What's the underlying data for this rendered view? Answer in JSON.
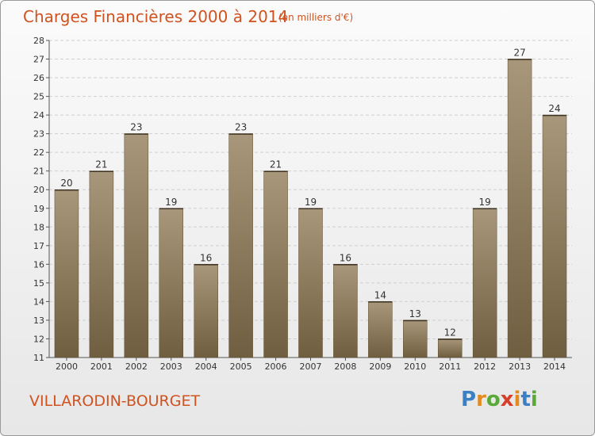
{
  "header": {
    "title": "Charges Financières 2000 à 2014",
    "subtitle": "(en milliers d'€)"
  },
  "footer": {
    "commune": "VILLARODIN-BOURGET",
    "brand": "Proxiti"
  },
  "colors": {
    "title": "#d0521f",
    "bar_top": "#a8977a",
    "bar_bottom": "#6f5e3f",
    "grid": "#cfcfcf"
  },
  "chart_data": {
    "type": "bar",
    "title": "Charges Financières 2000 à 2014",
    "subtitle": "(en milliers d'€)",
    "xlabel": "",
    "ylabel": "",
    "categories": [
      "2000",
      "2001",
      "2002",
      "2003",
      "2004",
      "2005",
      "2006",
      "2007",
      "2008",
      "2009",
      "2010",
      "2011",
      "2012",
      "2013",
      "2014"
    ],
    "values": [
      20,
      21,
      23,
      19,
      16,
      23,
      21,
      19,
      16,
      14,
      13,
      12,
      19,
      27,
      24
    ],
    "ylim": [
      11,
      28
    ],
    "yticks": [
      11,
      12,
      13,
      14,
      15,
      16,
      17,
      18,
      19,
      20,
      21,
      22,
      23,
      24,
      25,
      26,
      27,
      28
    ],
    "grid": true,
    "data_labels": true
  }
}
